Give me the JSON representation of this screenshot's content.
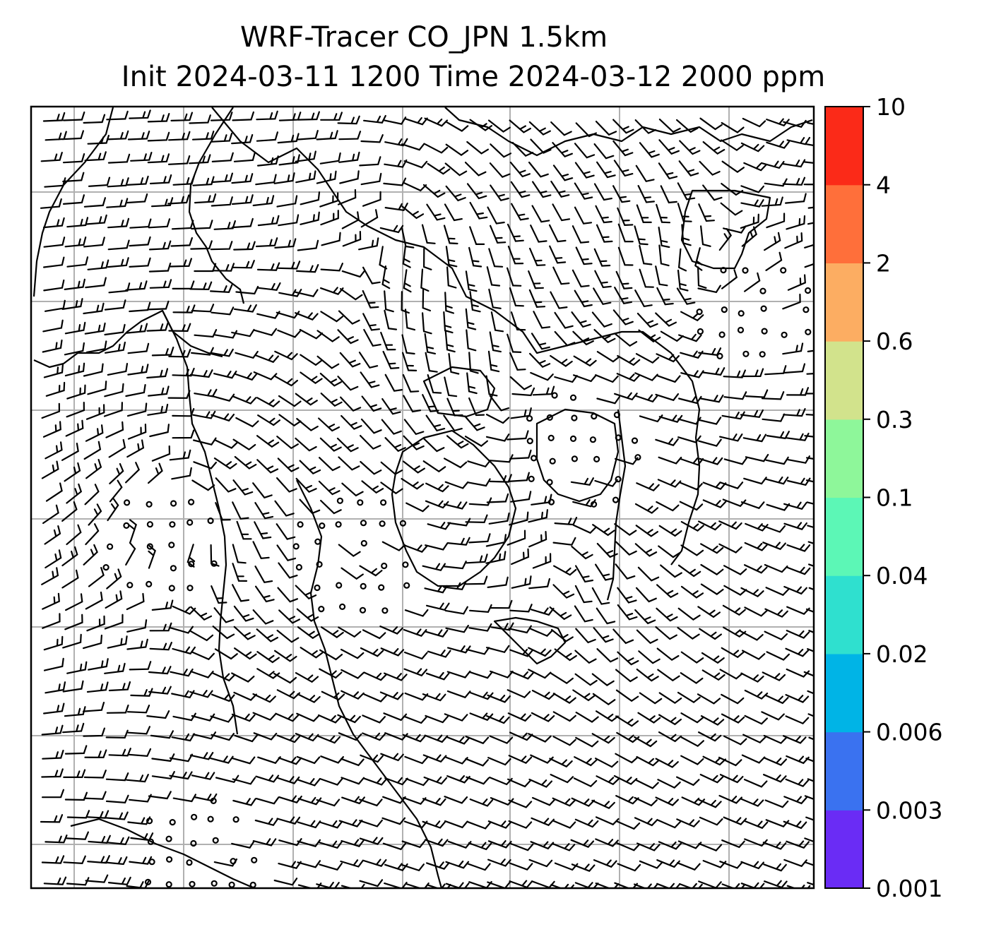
{
  "title": {
    "line1": "WRF-Tracer CO_JPN 1.5km",
    "line2": "Init 2024-03-11 1200 Time 2024-03-12 2000 ppm"
  },
  "colorbar": {
    "levels": [
      "0.001",
      "0.003",
      "0.006",
      "0.02",
      "0.04",
      "0.1",
      "0.3",
      "0.6",
      "2",
      "4",
      "10"
    ],
    "colors": [
      "#6a2cf5",
      "#3a72f0",
      "#00b4e6",
      "#2fe0cf",
      "#5cf7b6",
      "#8ef79a",
      "#d2e38c",
      "#fcad62",
      "#ff6f3a",
      "#fb2a18"
    ]
  },
  "map": {
    "gridline_color": "#b0b0b0",
    "barb_color": "#000000",
    "coast_color": "#000000",
    "calm_marker": "circle"
  }
}
